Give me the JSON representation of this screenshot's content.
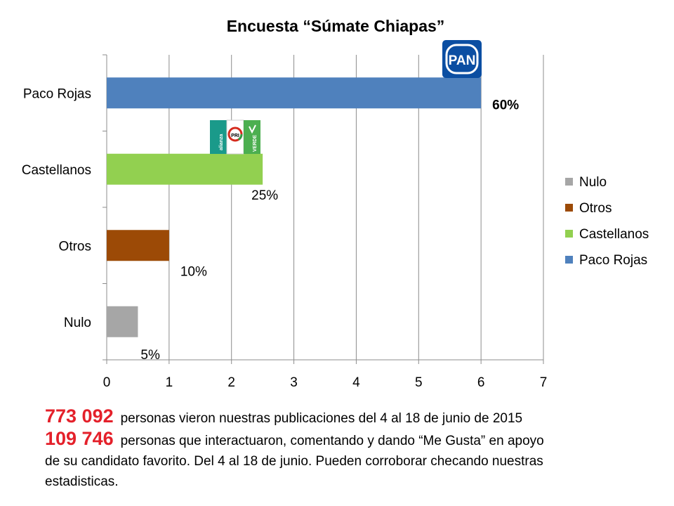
{
  "chart_data": {
    "type": "bar",
    "orientation": "horizontal",
    "title": "Encuesta   “Súmate Chiapas”",
    "categories": [
      "Paco Rojas",
      "Castellanos",
      "Otros",
      "Nulo"
    ],
    "values": [
      6,
      2.5,
      1,
      0.5
    ],
    "data_labels": [
      "60%",
      "25%",
      "10%",
      "5%"
    ],
    "colors": [
      "#4f81bd",
      "#92d050",
      "#9c4a06",
      "#a6a6a6"
    ],
    "xlim": [
      0,
      7
    ],
    "xticks": [
      "0",
      "1",
      "2",
      "3",
      "4",
      "5",
      "6",
      "7"
    ],
    "grid": "vertical",
    "legend": {
      "placement": "right",
      "entries": [
        {
          "label": "Nulo",
          "color": "#a6a6a6"
        },
        {
          "label": "Otros",
          "color": "#9c4a06"
        },
        {
          "label": "Castellanos",
          "color": "#92d050"
        },
        {
          "label": "Paco Rojas",
          "color": "#4f81bd"
        }
      ]
    },
    "logos": {
      "pan": "PAN",
      "coalition": [
        "alianza",
        "PRI",
        "VERDE"
      ]
    }
  },
  "stats": {
    "line1": {
      "number": "773 092",
      "text": "personas vieron nuestras publicaciones del 4 al 18 de junio de 2015"
    },
    "line2": {
      "number": "109 746",
      "text": "personas que  interactuaron, comentando y dando “Me Gusta” en apoyo"
    },
    "line3": "de su candidato favorito.  Del 4 al 18 de junio. Pueden corroborar checando nuestras",
    "line4": "estadisticas."
  },
  "colors": {
    "accent_red": "#e4202a",
    "pan_blue": "#0b4ea2"
  }
}
